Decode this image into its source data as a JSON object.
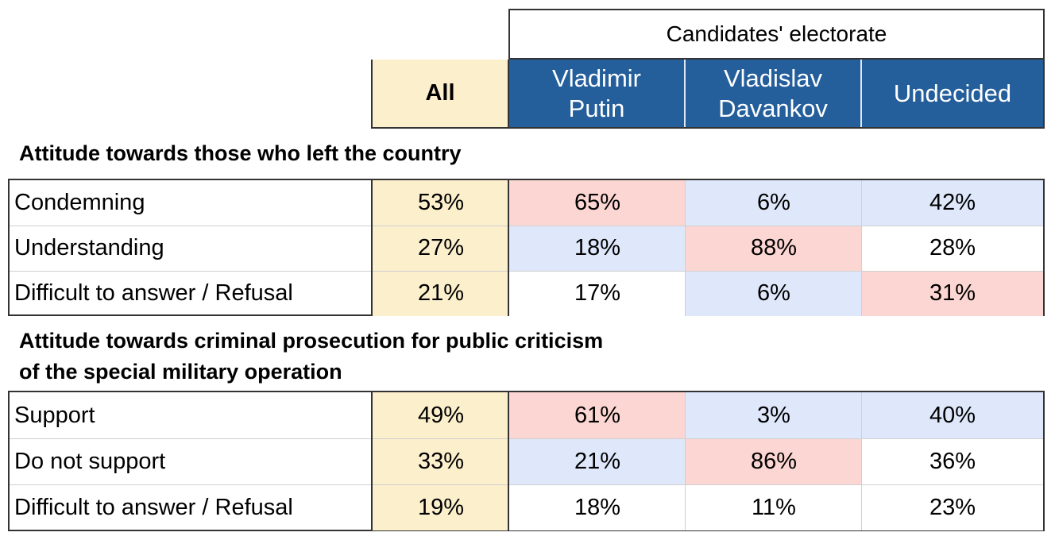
{
  "chart_data": {
    "type": "table",
    "group_header": "Candidates' electorate",
    "columns": [
      "All",
      "Vladimir Putin",
      "Vladislav Davankov",
      "Undecided"
    ],
    "column_lines": [
      [
        "All"
      ],
      [
        "Vladimir",
        "Putin"
      ],
      [
        "Vladislav",
        "Davankov"
      ],
      [
        "Undecided"
      ]
    ],
    "sections": [
      {
        "title": "Attitude towards those who left the country",
        "rows": [
          {
            "label": "Condemning",
            "values": [
              "53%",
              "65%",
              "6%",
              "42%"
            ],
            "highlights": [
              "all",
              "high",
              "low",
              "low"
            ]
          },
          {
            "label": "Understanding",
            "values": [
              "27%",
              "18%",
              "88%",
              "28%"
            ],
            "highlights": [
              "all",
              "low",
              "high",
              "none"
            ]
          },
          {
            "label": "Difficult to answer / Refusal",
            "values": [
              "21%",
              "17%",
              "6%",
              "31%"
            ],
            "highlights": [
              "all",
              "none",
              "low",
              "high"
            ]
          }
        ]
      },
      {
        "title": "Attitude towards criminal prosecution for public criticism of the special military operation",
        "title_lines": [
          "Attitude towards criminal prosecution for public criticism",
          "of the special military operation"
        ],
        "rows": [
          {
            "label": "Support",
            "values": [
              "49%",
              "61%",
              "3%",
              "40%"
            ],
            "highlights": [
              "all",
              "high",
              "low",
              "low"
            ]
          },
          {
            "label": "Do not support",
            "values": [
              "33%",
              "21%",
              "86%",
              "36%"
            ],
            "highlights": [
              "all",
              "low",
              "high",
              "none"
            ]
          },
          {
            "label": "Difficult to answer / Refusal",
            "values": [
              "19%",
              "18%",
              "11%",
              "23%"
            ],
            "highlights": [
              "all",
              "none",
              "none",
              "none"
            ]
          }
        ]
      }
    ]
  },
  "colors": {
    "header_blue": "#245e9b",
    "all_column": "#fcefcc",
    "high": "#fcd6d2",
    "low": "#dfe8fb",
    "none": "#ffffff"
  }
}
